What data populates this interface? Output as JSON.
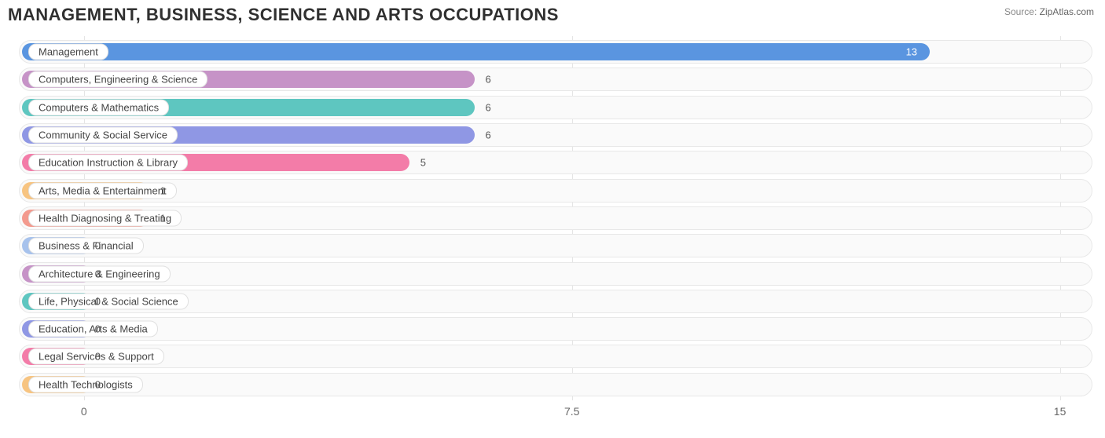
{
  "title": "MANAGEMENT, BUSINESS, SCIENCE AND ARTS OCCUPATIONS",
  "source_label": "Source:",
  "source_name": "ZipAtlas.com",
  "chart": {
    "type": "bar-horizontal",
    "background_color": "#ffffff",
    "track_bg": "#fafafa",
    "track_border": "#e8e8e8",
    "grid_color": "#e5e5e5",
    "xmin": -1.0,
    "xmax": 15.5,
    "xticks": [
      {
        "value": 0,
        "label": "0"
      },
      {
        "value": 7.5,
        "label": "7.5"
      },
      {
        "value": 15,
        "label": "15"
      }
    ],
    "label_fontsize": 13,
    "value_fontsize": 13,
    "title_fontsize": 22,
    "bars": [
      {
        "label": "Management",
        "value": 13,
        "color": "#5a95e0",
        "value_color": "#ffffff",
        "value_inside": true
      },
      {
        "label": "Computers, Engineering & Science",
        "value": 6,
        "color": "#c693c7",
        "value_color": "#555555",
        "value_inside": false
      },
      {
        "label": "Computers & Mathematics",
        "value": 6,
        "color": "#5ec6c0",
        "value_color": "#555555",
        "value_inside": false
      },
      {
        "label": "Community & Social Service",
        "value": 6,
        "color": "#8f97e4",
        "value_color": "#555555",
        "value_inside": false
      },
      {
        "label": "Education Instruction & Library",
        "value": 5,
        "color": "#f37ca8",
        "value_color": "#555555",
        "value_inside": false
      },
      {
        "label": "Arts, Media & Entertainment",
        "value": 1,
        "color": "#f7c481",
        "value_color": "#555555",
        "value_inside": false
      },
      {
        "label": "Health Diagnosing & Treating",
        "value": 1,
        "color": "#f39a8e",
        "value_color": "#555555",
        "value_inside": false
      },
      {
        "label": "Business & Financial",
        "value": 0,
        "color": "#a7c2ec",
        "value_color": "#555555",
        "value_inside": false
      },
      {
        "label": "Architecture & Engineering",
        "value": 0,
        "color": "#c693c7",
        "value_color": "#555555",
        "value_inside": false
      },
      {
        "label": "Life, Physical & Social Science",
        "value": 0,
        "color": "#5ec6c0",
        "value_color": "#555555",
        "value_inside": false
      },
      {
        "label": "Education, Arts & Media",
        "value": 0,
        "color": "#8f97e4",
        "value_color": "#555555",
        "value_inside": false
      },
      {
        "label": "Legal Services & Support",
        "value": 0,
        "color": "#f37ca8",
        "value_color": "#555555",
        "value_inside": false
      },
      {
        "label": "Health Technologists",
        "value": 0,
        "color": "#f7c481",
        "value_color": "#555555",
        "value_inside": false
      }
    ]
  }
}
